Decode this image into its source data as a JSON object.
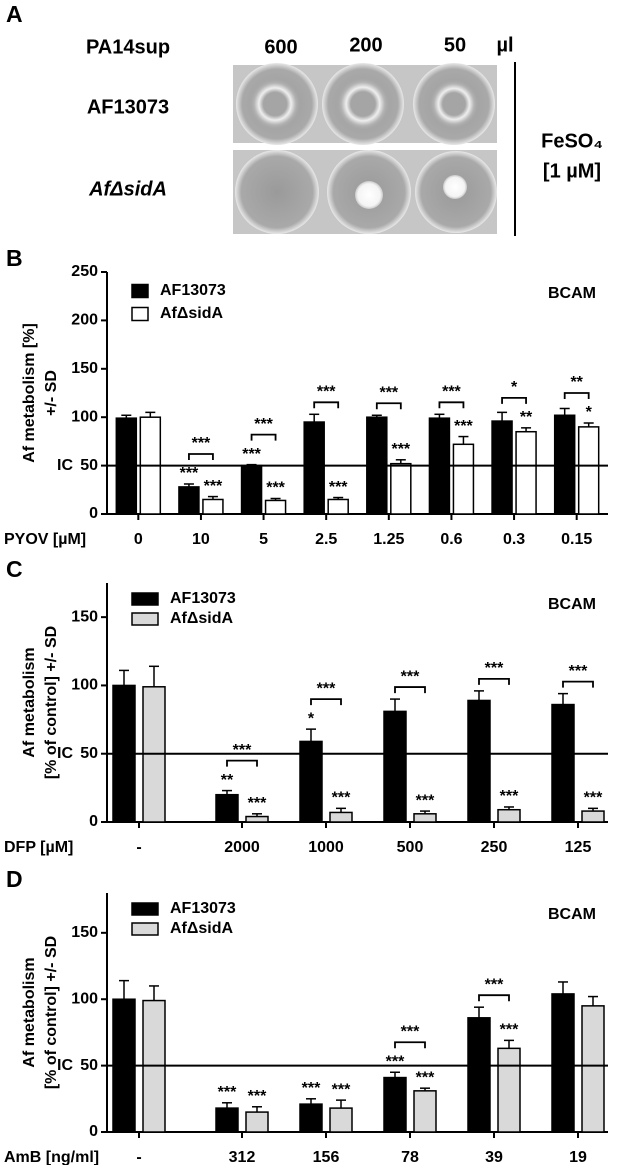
{
  "panel_a": {
    "letter": "A",
    "column_header": "PA14sup",
    "volumes": [
      "600",
      "200",
      "50"
    ],
    "unit": "µl",
    "rows": [
      "AF13073",
      "AfΔsidA"
    ],
    "condition": [
      "FeSO₄",
      "[1 µM]"
    ]
  },
  "chart_data": [
    {
      "type": "bar",
      "panel": "B",
      "title": "BCAM",
      "ylabel": [
        "Af metabolism [%]",
        "+/- SD"
      ],
      "xlabel": "PYOV [µM]",
      "categories": [
        "0",
        "10",
        "5",
        "2.5",
        "1.25",
        "0.6",
        "0.3",
        "0.15"
      ],
      "series": [
        {
          "name": "AF13073",
          "color": "#000000",
          "values": [
            99,
            28,
            50,
            95,
            100,
            99,
            96,
            102
          ],
          "errors": [
            3,
            3,
            1,
            8,
            2,
            4,
            9,
            7
          ],
          "stars": [
            null,
            "***",
            "***",
            null,
            null,
            null,
            null,
            null
          ]
        },
        {
          "name": "AfΔsidA",
          "color": "#ffffff",
          "values": [
            100,
            15,
            14,
            15,
            52,
            72,
            85,
            90
          ],
          "errors": [
            5,
            3,
            2,
            2,
            4,
            8,
            4,
            4
          ],
          "stars": [
            null,
            "***",
            "***",
            "***",
            "***",
            "***",
            "**",
            "*"
          ]
        }
      ],
      "bracket_labels": [
        null,
        "***",
        "***",
        "***",
        "***",
        "***",
        "*",
        "**"
      ],
      "ref_line": {
        "value": 50,
        "label": "IC"
      },
      "ylim": [
        0,
        250
      ],
      "yticks": [
        0,
        50,
        100,
        150,
        200,
        250
      ]
    },
    {
      "type": "bar",
      "panel": "C",
      "title": "BCAM",
      "ylabel": [
        "Af metabolism",
        "[% of control] +/- SD"
      ],
      "xlabel": "DFP [µM]",
      "categories": [
        "-",
        "2000",
        "1000",
        "500",
        "250",
        "125"
      ],
      "series": [
        {
          "name": "AF13073",
          "color": "#000000",
          "values": [
            100,
            20,
            59,
            81,
            89,
            86
          ],
          "errors": [
            11,
            3,
            9,
            9,
            7,
            8
          ],
          "stars": [
            null,
            "**",
            "*",
            null,
            null,
            null
          ]
        },
        {
          "name": "AfΔsidA",
          "color": "#d9d9d9",
          "values": [
            99,
            4,
            7,
            6,
            9,
            8
          ],
          "errors": [
            15,
            2,
            3,
            2,
            2,
            2
          ],
          "stars": [
            null,
            "***",
            "***",
            "***",
            "***",
            "***"
          ]
        }
      ],
      "bracket_labels": [
        null,
        "***",
        "***",
        "***",
        "***",
        "***"
      ],
      "ref_line": {
        "value": 50,
        "label": "IC"
      },
      "ylim": [
        0,
        175
      ],
      "yticks": [
        0,
        50,
        100,
        150
      ]
    },
    {
      "type": "bar",
      "panel": "D",
      "title": "BCAM",
      "ylabel": [
        "Af metabolism",
        "[% of control] +/- SD"
      ],
      "xlabel": "AmB [ng/ml]",
      "categories": [
        "-",
        "312",
        "156",
        "78",
        "39",
        "19"
      ],
      "series": [
        {
          "name": "AF13073",
          "color": "#000000",
          "values": [
            100,
            18,
            21,
            41,
            86,
            104
          ],
          "errors": [
            14,
            4,
            4,
            4,
            8,
            9
          ],
          "stars": [
            null,
            "***",
            "***",
            "***",
            null,
            null
          ]
        },
        {
          "name": "AfΔsidA",
          "color": "#d9d9d9",
          "values": [
            99,
            15,
            18,
            31,
            63,
            95
          ],
          "errors": [
            11,
            4,
            6,
            2,
            6,
            7
          ],
          "stars": [
            null,
            "***",
            "***",
            "***",
            "***",
            null
          ]
        }
      ],
      "bracket_labels": [
        null,
        null,
        null,
        "***",
        "***",
        null
      ],
      "ref_line": {
        "value": 50,
        "label": "IC"
      },
      "ylim": [
        0,
        180
      ],
      "yticks": [
        0,
        50,
        100,
        150
      ]
    }
  ]
}
